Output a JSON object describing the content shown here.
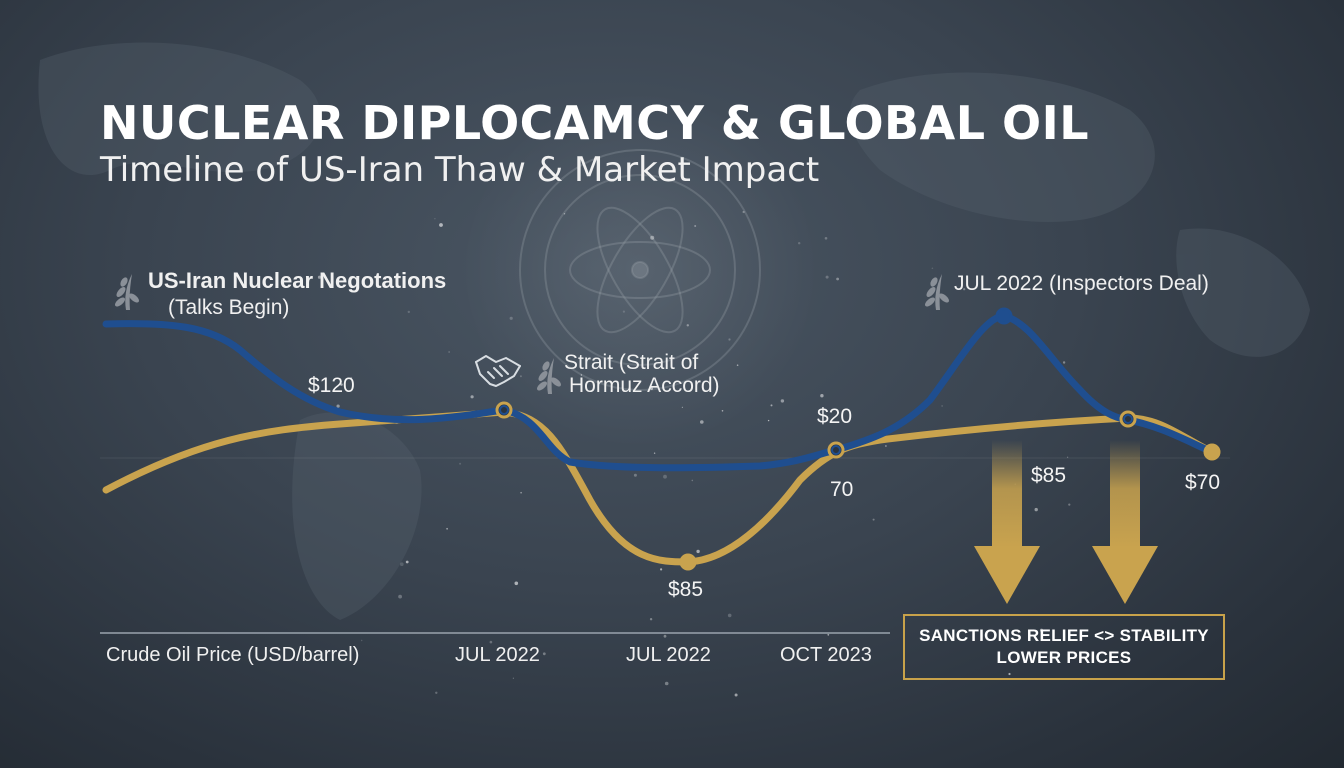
{
  "title": "NUCLEAR DIPLOCAMCY & GLOBAL OIL",
  "subtitle": "Timeline of US-Iran Thaw & Market Impact",
  "annotations": {
    "talks_title": "US-Iran Nuclear Negotations",
    "talks_sub": "(Talks Begin)",
    "strait_line1": "Strait (Strait of",
    "strait_line2": "Hormuz Accord)",
    "inspectors": "JUL 2022 (Inspectors Deal)"
  },
  "value_labels": {
    "v120": "$120",
    "v85_low": "$85",
    "v20": "$20",
    "v70_plain": "70",
    "v85_right": "$85",
    "v70_end": "$70"
  },
  "x_axis": {
    "label": "Crude Oil Price (USD/barrel)",
    "ticks": [
      "JUL 2022",
      "JUL 2022",
      "OCT 2023"
    ]
  },
  "callout": {
    "line1": "SANCTIONS RELIEF <> STABILITY",
    "line2": "LOWER PRICES"
  },
  "colors": {
    "blue_series": "#1f4e8f",
    "gold_series": "#c9a34e",
    "background": "#333c47"
  },
  "icons": [
    "laurel-icon",
    "handshake-icon",
    "atom-icon",
    "down-arrow-icon"
  ],
  "chart_data": {
    "type": "line",
    "title": "NUCLEAR DIPLOCAMCY & GLOBAL OIL",
    "subtitle": "Timeline of US-Iran Thaw & Market Impact",
    "xlabel": "Crude Oil Price (USD/barrel)",
    "ylabel": "",
    "x_ticks": [
      "JUL 2022",
      "JUL 2022",
      "OCT 2023"
    ],
    "grid": false,
    "series": [
      {
        "color": "#1f4e8f",
        "points": [
          [
            0,
            138
          ],
          [
            0.08,
            136
          ],
          [
            0.2,
            117
          ],
          [
            0.3,
            116
          ],
          [
            0.4,
            120
          ],
          [
            0.5,
            100
          ],
          [
            0.65,
            99
          ],
          [
            0.79,
            108
          ],
          [
            0.85,
            125
          ],
          [
            0.9,
            150
          ],
          [
            0.95,
            128
          ],
          [
            1.0,
            109
          ],
          [
            1.1,
            104
          ]
        ],
        "markers": [
          3,
          8,
          10
        ]
      },
      {
        "color": "#c9a34e",
        "points": [
          [
            0,
            95
          ],
          [
            0.15,
            112
          ],
          [
            0.3,
            118
          ],
          [
            0.4,
            120
          ],
          [
            0.48,
            108
          ],
          [
            0.58,
            70
          ],
          [
            0.66,
            75
          ],
          [
            0.79,
            107
          ],
          [
            0.85,
            113
          ],
          [
            0.95,
            116
          ],
          [
            1.0,
            117
          ],
          [
            1.1,
            105
          ]
        ],
        "markers": [
          6,
          7,
          11
        ]
      }
    ],
    "data_labels": [
      "$120",
      "$85",
      "$20",
      "70",
      "$85",
      "$70"
    ]
  }
}
